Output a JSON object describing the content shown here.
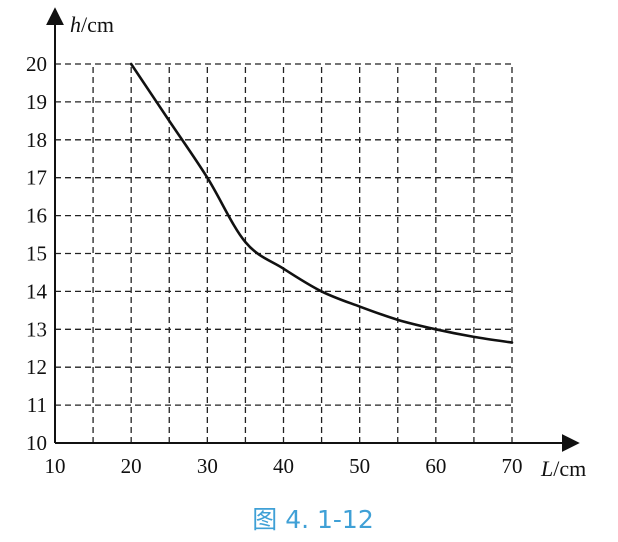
{
  "chart_data": {
    "type": "line",
    "title": "",
    "xlabel": {
      "var": "L",
      "unit": "/cm"
    },
    "ylabel": {
      "var": "h",
      "unit": "/cm"
    },
    "xlim": [
      10,
      70
    ],
    "ylim": [
      10,
      20
    ],
    "x_ticks": [
      10,
      20,
      30,
      40,
      50,
      60,
      70
    ],
    "y_ticks": [
      10,
      11,
      12,
      13,
      14,
      15,
      16,
      17,
      18,
      19,
      20
    ],
    "grid": true,
    "series": [
      {
        "x": [
          20,
          25,
          30,
          35,
          40,
          45,
          50,
          55,
          60,
          65,
          70
        ],
        "y": [
          20,
          18.5,
          17,
          15.3,
          14.6,
          14.0,
          13.6,
          13.25,
          13.0,
          12.8,
          12.65
        ]
      }
    ]
  },
  "caption": "图 4. 1-12"
}
